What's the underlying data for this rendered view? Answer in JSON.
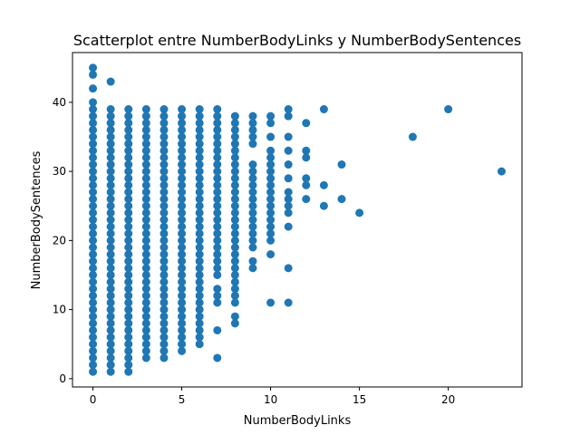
{
  "chart_data": {
    "type": "scatter",
    "title": "Scatterplot entre NumberBodyLinks y NumberBodySentences",
    "xlabel": "NumberBodyLinks",
    "ylabel": "NumberBodySentences",
    "xlim": [
      -1.15,
      24.15
    ],
    "ylim": [
      -1.2,
      47.2
    ],
    "xticks": [
      0,
      5,
      10,
      15,
      20
    ],
    "yticks": [
      0,
      10,
      20,
      30,
      40
    ],
    "grid": false,
    "marker_color": "#1f77b4",
    "columns": [
      {
        "x": 0,
        "ymin": 1,
        "ymax": 40,
        "extra": [
          42,
          44,
          45
        ]
      },
      {
        "x": 1,
        "ymin": 1,
        "ymax": 39,
        "extra": [
          43
        ]
      },
      {
        "x": 2,
        "ymin": 1,
        "ymax": 39,
        "extra": []
      },
      {
        "x": 3,
        "ymin": 3,
        "ymax": 39,
        "extra": []
      },
      {
        "x": 4,
        "ymin": 3,
        "ymax": 39,
        "extra": []
      },
      {
        "x": 5,
        "ymin": 4,
        "ymax": 39,
        "extra": []
      },
      {
        "x": 6,
        "ymin": 5,
        "ymax": 39,
        "extra": []
      },
      {
        "x": 7,
        "ymin": 15,
        "ymax": 39,
        "extra": [
          3,
          7,
          11,
          12,
          13
        ]
      },
      {
        "x": 8,
        "ymin": 14,
        "ymax": 38,
        "extra": [
          8,
          9,
          11,
          12,
          13
        ]
      }
    ],
    "points": [
      [
        9,
        16
      ],
      [
        9,
        17
      ],
      [
        9,
        19
      ],
      [
        9,
        20
      ],
      [
        9,
        21
      ],
      [
        9,
        22
      ],
      [
        9,
        23
      ],
      [
        9,
        24
      ],
      [
        9,
        25
      ],
      [
        9,
        26
      ],
      [
        9,
        27
      ],
      [
        9,
        28
      ],
      [
        9,
        29
      ],
      [
        9,
        30
      ],
      [
        9,
        31
      ],
      [
        9,
        34
      ],
      [
        9,
        35
      ],
      [
        9,
        36
      ],
      [
        9,
        37
      ],
      [
        9,
        38
      ],
      [
        10,
        11
      ],
      [
        10,
        18
      ],
      [
        10,
        20
      ],
      [
        10,
        21
      ],
      [
        10,
        22
      ],
      [
        10,
        23
      ],
      [
        10,
        24
      ],
      [
        10,
        25
      ],
      [
        10,
        26
      ],
      [
        10,
        27
      ],
      [
        10,
        28
      ],
      [
        10,
        29
      ],
      [
        10,
        30
      ],
      [
        10,
        31
      ],
      [
        10,
        32
      ],
      [
        10,
        33
      ],
      [
        10,
        35
      ],
      [
        10,
        37
      ],
      [
        10,
        38
      ],
      [
        11,
        11
      ],
      [
        11,
        16
      ],
      [
        11,
        22
      ],
      [
        11,
        24
      ],
      [
        11,
        25
      ],
      [
        11,
        26
      ],
      [
        11,
        27
      ],
      [
        11,
        29
      ],
      [
        11,
        31
      ],
      [
        11,
        33
      ],
      [
        11,
        35
      ],
      [
        11,
        38
      ],
      [
        11,
        39
      ],
      [
        12,
        26
      ],
      [
        12,
        28
      ],
      [
        12,
        29
      ],
      [
        12,
        32
      ],
      [
        12,
        33
      ],
      [
        12,
        37
      ],
      [
        13,
        25
      ],
      [
        13,
        28
      ],
      [
        13,
        39
      ],
      [
        14,
        26
      ],
      [
        14,
        31
      ],
      [
        15,
        24
      ],
      [
        18,
        35
      ],
      [
        20,
        39
      ],
      [
        23,
        30
      ]
    ]
  }
}
